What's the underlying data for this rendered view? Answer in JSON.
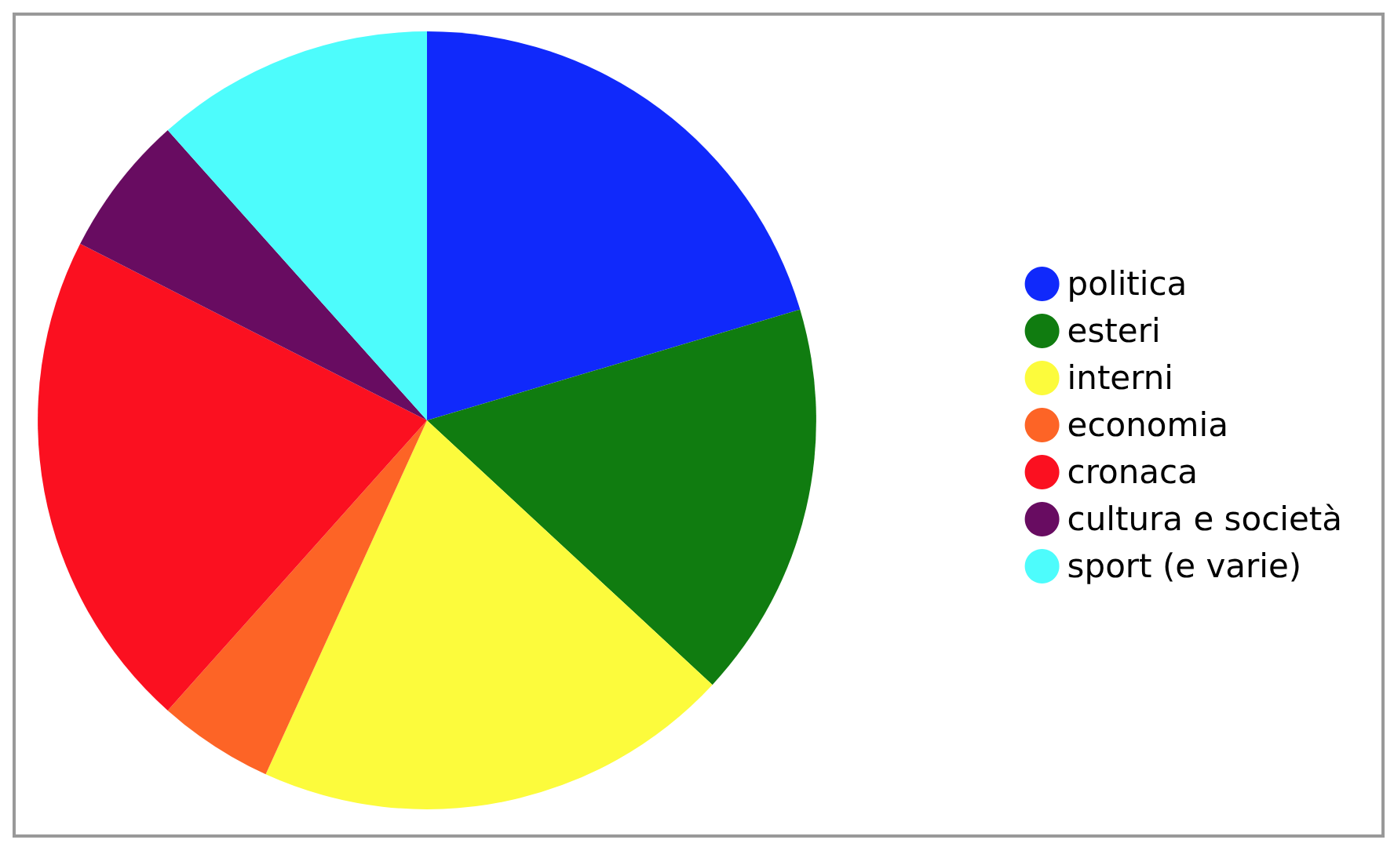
{
  "chart_data": {
    "type": "pie",
    "categories": [
      "politica",
      "esteri",
      "interni",
      "economia",
      "cronaca",
      "cultura e società",
      "sport (e varie)"
    ],
    "values": [
      20.4,
      16.5,
      19.9,
      4.8,
      20.9,
      5.9,
      11.6
    ],
    "colors": [
      "#1029fb",
      "#107c10",
      "#fcfb3c",
      "#fd6426",
      "#fb1020",
      "#680c61",
      "#4dfcfc"
    ],
    "legend": "right"
  }
}
